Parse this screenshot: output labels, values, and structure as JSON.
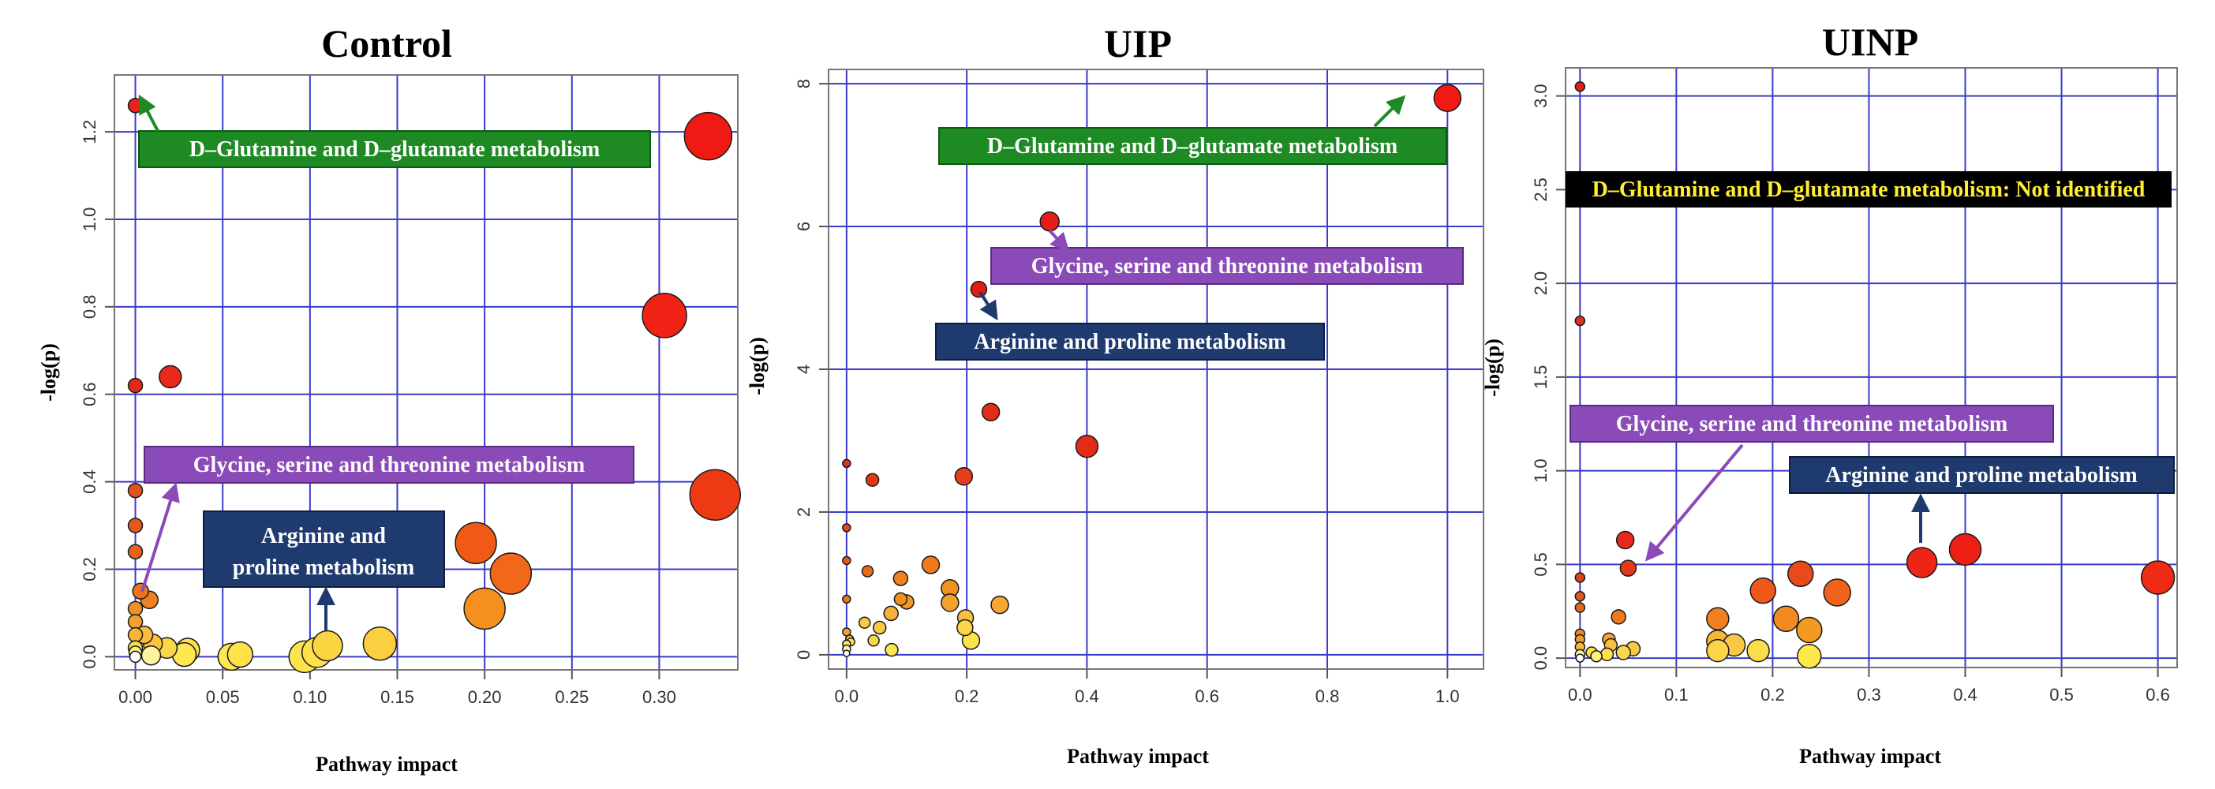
{
  "chart_data": [
    {
      "type": "scatter",
      "title": "Control",
      "xlabel": "Pathway impact",
      "ylabel": "-log(p)",
      "xlim": [
        -0.012,
        0.345
      ],
      "ylim": [
        -0.03,
        1.33
      ],
      "xticks": [
        0.0,
        0.05,
        0.1,
        0.15,
        0.2,
        0.25,
        0.3
      ],
      "xtick_labels": [
        "0.00",
        "0.05",
        "0.10",
        "0.15",
        "0.20",
        "0.25",
        "0.30"
      ],
      "yticks": [
        0.0,
        0.2,
        0.4,
        0.6,
        0.8,
        1.0,
        1.2
      ],
      "ytick_labels": [
        "0.0",
        "0.2",
        "0.4",
        "0.6",
        "0.8",
        "1.0",
        "1.2"
      ],
      "grid": true,
      "points": [
        {
          "x": 0.0,
          "y": 1.26,
          "size": 9,
          "color": "#e8231a"
        },
        {
          "x": 0.328,
          "y": 1.19,
          "size": 30,
          "color": "#f01a14"
        },
        {
          "x": 0.303,
          "y": 0.78,
          "size": 28,
          "color": "#f02216"
        },
        {
          "x": 0.02,
          "y": 0.64,
          "size": 14,
          "color": "#e8281a"
        },
        {
          "x": 0.0,
          "y": 0.62,
          "size": 9,
          "color": "#e02a18"
        },
        {
          "x": 0.332,
          "y": 0.37,
          "size": 32,
          "color": "#ee3a14"
        },
        {
          "x": 0.0,
          "y": 0.38,
          "size": 9,
          "color": "#e0531c"
        },
        {
          "x": 0.0,
          "y": 0.3,
          "size": 9,
          "color": "#e25a1c"
        },
        {
          "x": 0.195,
          "y": 0.26,
          "size": 26,
          "color": "#ef5a16"
        },
        {
          "x": 0.0,
          "y": 0.24,
          "size": 9,
          "color": "#e5621c"
        },
        {
          "x": 0.215,
          "y": 0.19,
          "size": 26,
          "color": "#f2681a"
        },
        {
          "x": 0.003,
          "y": 0.15,
          "size": 10,
          "color": "#ee741c"
        },
        {
          "x": 0.008,
          "y": 0.13,
          "size": 11,
          "color": "#f08020"
        },
        {
          "x": 0.2,
          "y": 0.11,
          "size": 26,
          "color": "#f5901e"
        },
        {
          "x": 0.0,
          "y": 0.11,
          "size": 9,
          "color": "#f0902a"
        },
        {
          "x": 0.0,
          "y": 0.08,
          "size": 9,
          "color": "#f2a030"
        },
        {
          "x": 0.0,
          "y": 0.05,
          "size": 9,
          "color": "#f5b43a"
        },
        {
          "x": 0.005,
          "y": 0.05,
          "size": 11,
          "color": "#f8bc3e"
        },
        {
          "x": 0.01,
          "y": 0.03,
          "size": 12,
          "color": "#fac43e"
        },
        {
          "x": 0.018,
          "y": 0.02,
          "size": 13,
          "color": "#fbd648"
        },
        {
          "x": 0.0,
          "y": 0.02,
          "size": 9,
          "color": "#f8e04c"
        },
        {
          "x": 0.0,
          "y": 0.01,
          "size": 8,
          "color": "#fff27a"
        },
        {
          "x": 0.03,
          "y": 0.015,
          "size": 15,
          "color": "#fde04a"
        },
        {
          "x": 0.028,
          "y": 0.005,
          "size": 15,
          "color": "#fde84f"
        },
        {
          "x": 0.055,
          "y": 0.0,
          "size": 17,
          "color": "#fde84e"
        },
        {
          "x": 0.06,
          "y": 0.005,
          "size": 16,
          "color": "#fde24a"
        },
        {
          "x": 0.097,
          "y": 0.0,
          "size": 20,
          "color": "#fde44f"
        },
        {
          "x": 0.104,
          "y": 0.01,
          "size": 19,
          "color": "#fde04a"
        },
        {
          "x": 0.11,
          "y": 0.025,
          "size": 19,
          "color": "#fbd442"
        },
        {
          "x": 0.14,
          "y": 0.03,
          "size": 21,
          "color": "#fbcf40"
        },
        {
          "x": 0.0,
          "y": 0.0,
          "size": 7,
          "color": "#ffffff"
        },
        {
          "x": 0.009,
          "y": 0.003,
          "size": 12,
          "color": "#fff3a0"
        }
      ],
      "annotations": [
        {
          "text": "D–Glutamine and D–glutamate metabolism",
          "box": "green"
        },
        {
          "text": "Glycine, serine and threonine metabolism",
          "box": "purple"
        },
        {
          "text": "Arginine and",
          "box": "navy"
        },
        {
          "text": "proline metabolism",
          "box": "navy"
        }
      ]
    },
    {
      "type": "scatter",
      "title": "UIP",
      "xlabel": "Pathway impact",
      "ylabel": "-log(p)",
      "xlim": [
        -0.03,
        1.06
      ],
      "ylim": [
        -0.2,
        8.2
      ],
      "xticks": [
        0.0,
        0.2,
        0.4,
        0.6,
        0.8,
        1.0
      ],
      "xtick_labels": [
        "0.0",
        "0.2",
        "0.4",
        "0.6",
        "0.8",
        "1.0"
      ],
      "yticks": [
        0,
        2,
        4,
        6,
        8
      ],
      "ytick_labels": [
        "0",
        "2",
        "4",
        "6",
        "8"
      ],
      "grid": true,
      "points": [
        {
          "x": 1.0,
          "y": 7.8,
          "size": 17,
          "color": "#f01a14"
        },
        {
          "x": 0.338,
          "y": 6.07,
          "size": 12,
          "color": "#e41e16"
        },
        {
          "x": 0.22,
          "y": 5.12,
          "size": 10,
          "color": "#e01e16"
        },
        {
          "x": 0.24,
          "y": 3.4,
          "size": 11,
          "color": "#e22c18"
        },
        {
          "x": 0.4,
          "y": 2.92,
          "size": 14,
          "color": "#e22c18"
        },
        {
          "x": 0.0,
          "y": 2.68,
          "size": 5,
          "color": "#d83418"
        },
        {
          "x": 0.043,
          "y": 2.45,
          "size": 8,
          "color": "#e03a18"
        },
        {
          "x": 0.195,
          "y": 2.5,
          "size": 11,
          "color": "#e43e1a"
        },
        {
          "x": 0.0,
          "y": 1.78,
          "size": 5,
          "color": "#dc4a1c"
        },
        {
          "x": 0.0,
          "y": 1.32,
          "size": 5,
          "color": "#e05a1c"
        },
        {
          "x": 0.14,
          "y": 1.26,
          "size": 11,
          "color": "#f07a1e"
        },
        {
          "x": 0.035,
          "y": 1.17,
          "size": 7,
          "color": "#e86a1c"
        },
        {
          "x": 0.09,
          "y": 1.07,
          "size": 9,
          "color": "#f08020"
        },
        {
          "x": 0.172,
          "y": 0.93,
          "size": 11,
          "color": "#f29020"
        },
        {
          "x": 0.09,
          "y": 0.78,
          "size": 8,
          "color": "#f0901e"
        },
        {
          "x": 0.0,
          "y": 0.78,
          "size": 5,
          "color": "#e87a1c"
        },
        {
          "x": 0.1,
          "y": 0.74,
          "size": 9,
          "color": "#f29a28"
        },
        {
          "x": 0.172,
          "y": 0.73,
          "size": 11,
          "color": "#f4a22c"
        },
        {
          "x": 0.255,
          "y": 0.7,
          "size": 11,
          "color": "#f6a832"
        },
        {
          "x": 0.074,
          "y": 0.58,
          "size": 9,
          "color": "#f5b03a"
        },
        {
          "x": 0.198,
          "y": 0.52,
          "size": 10,
          "color": "#f8c040"
        },
        {
          "x": 0.03,
          "y": 0.45,
          "size": 7,
          "color": "#f8c848"
        },
        {
          "x": 0.055,
          "y": 0.38,
          "size": 8,
          "color": "#f8ca46"
        },
        {
          "x": 0.197,
          "y": 0.38,
          "size": 10,
          "color": "#fbd448"
        },
        {
          "x": 0.0,
          "y": 0.32,
          "size": 5,
          "color": "#f5a030"
        },
        {
          "x": 0.005,
          "y": 0.22,
          "size": 5,
          "color": "#f8d050"
        },
        {
          "x": 0.007,
          "y": 0.18,
          "size": 5,
          "color": "#fce060"
        },
        {
          "x": 0.045,
          "y": 0.2,
          "size": 7,
          "color": "#fad64a"
        },
        {
          "x": 0.207,
          "y": 0.2,
          "size": 11,
          "color": "#fde24a"
        },
        {
          "x": 0.0,
          "y": 0.15,
          "size": 5,
          "color": "#fde66a"
        },
        {
          "x": 0.0,
          "y": 0.08,
          "size": 5,
          "color": "#fff8b0"
        },
        {
          "x": 0.075,
          "y": 0.07,
          "size": 8,
          "color": "#fde650"
        },
        {
          "x": 0.0,
          "y": 0.02,
          "size": 4,
          "color": "#ffffff"
        }
      ],
      "annotations": [
        {
          "text": "D–Glutamine and D–glutamate metabolism",
          "box": "green"
        },
        {
          "text": "Glycine, serine and threonine metabolism",
          "box": "purple"
        },
        {
          "text": "Arginine and proline metabolism",
          "box": "navy"
        }
      ]
    },
    {
      "type": "scatter",
      "title": "UINP",
      "xlabel": "Pathway impact",
      "ylabel": "-log(p)",
      "xlim": [
        -0.015,
        0.62
      ],
      "ylim": [
        -0.05,
        3.15
      ],
      "xticks": [
        0.0,
        0.1,
        0.2,
        0.3,
        0.4,
        0.5,
        0.6
      ],
      "xtick_labels": [
        "0.0",
        "0.1",
        "0.2",
        "0.3",
        "0.4",
        "0.5",
        "0.6"
      ],
      "yticks": [
        0.0,
        0.5,
        1.0,
        1.5,
        2.0,
        2.5,
        3.0
      ],
      "ytick_labels": [
        "0.0",
        "0.5",
        "1.0",
        "1.5",
        "2.0",
        "2.5",
        "3.0"
      ],
      "grid": true,
      "points": [
        {
          "x": 0.0,
          "y": 3.05,
          "size": 6,
          "color": "#e01e16"
        },
        {
          "x": 0.0,
          "y": 1.8,
          "size": 6,
          "color": "#d83418"
        },
        {
          "x": 0.047,
          "y": 0.63,
          "size": 11,
          "color": "#e8281a"
        },
        {
          "x": 0.4,
          "y": 0.58,
          "size": 20,
          "color": "#ee2016"
        },
        {
          "x": 0.355,
          "y": 0.51,
          "size": 19,
          "color": "#ee2416"
        },
        {
          "x": 0.05,
          "y": 0.48,
          "size": 10,
          "color": "#e23a18"
        },
        {
          "x": 0.229,
          "y": 0.45,
          "size": 16,
          "color": "#e84a1a"
        },
        {
          "x": 0.6,
          "y": 0.43,
          "size": 21,
          "color": "#ee2c16"
        },
        {
          "x": 0.0,
          "y": 0.43,
          "size": 6,
          "color": "#dc4418"
        },
        {
          "x": 0.19,
          "y": 0.36,
          "size": 16,
          "color": "#f0581a"
        },
        {
          "x": 0.267,
          "y": 0.35,
          "size": 17,
          "color": "#f0621c"
        },
        {
          "x": 0.0,
          "y": 0.33,
          "size": 6,
          "color": "#e0581c"
        },
        {
          "x": 0.0,
          "y": 0.27,
          "size": 6,
          "color": "#e26a1c"
        },
        {
          "x": 0.04,
          "y": 0.22,
          "size": 9,
          "color": "#ee781c"
        },
        {
          "x": 0.143,
          "y": 0.21,
          "size": 14,
          "color": "#f08020"
        },
        {
          "x": 0.214,
          "y": 0.21,
          "size": 16,
          "color": "#f28a20"
        },
        {
          "x": 0.238,
          "y": 0.15,
          "size": 16,
          "color": "#f29a24"
        },
        {
          "x": 0.0,
          "y": 0.13,
          "size": 6,
          "color": "#ee9020"
        },
        {
          "x": 0.0,
          "y": 0.1,
          "size": 6,
          "color": "#f09a28"
        },
        {
          "x": 0.03,
          "y": 0.1,
          "size": 8,
          "color": "#f5a830"
        },
        {
          "x": 0.143,
          "y": 0.09,
          "size": 14,
          "color": "#f5b83a"
        },
        {
          "x": 0.16,
          "y": 0.07,
          "size": 14,
          "color": "#f8c844"
        },
        {
          "x": 0.032,
          "y": 0.07,
          "size": 8,
          "color": "#f8c040"
        },
        {
          "x": 0.055,
          "y": 0.05,
          "size": 9,
          "color": "#f8c846"
        },
        {
          "x": 0.143,
          "y": 0.04,
          "size": 14,
          "color": "#fbd448"
        },
        {
          "x": 0.185,
          "y": 0.04,
          "size": 14,
          "color": "#fbdc4a"
        },
        {
          "x": 0.0,
          "y": 0.06,
          "size": 6,
          "color": "#f5b83a"
        },
        {
          "x": 0.045,
          "y": 0.03,
          "size": 9,
          "color": "#fad64a"
        },
        {
          "x": 0.028,
          "y": 0.02,
          "size": 8,
          "color": "#fde04a"
        },
        {
          "x": 0.238,
          "y": 0.01,
          "size": 15,
          "color": "#fde84e"
        },
        {
          "x": 0.012,
          "y": 0.03,
          "size": 7,
          "color": "#fde24a"
        },
        {
          "x": 0.017,
          "y": 0.01,
          "size": 7,
          "color": "#fff07a"
        },
        {
          "x": 0.0,
          "y": 0.02,
          "size": 6,
          "color": "#fff8b0"
        },
        {
          "x": 0.0,
          "y": 0.0,
          "size": 5,
          "color": "#ffffff"
        }
      ],
      "annotations": [
        {
          "text": "D–Glutamine and D–glutamate metabolism: Not identified",
          "box": "black"
        },
        {
          "text": "Glycine, serine and threonine metabolism",
          "box": "purple"
        },
        {
          "text": "Arginine and proline metabolism",
          "box": "navy"
        }
      ]
    }
  ],
  "colors": {
    "grid": "#3a3acc",
    "green_box": "#1e8a24",
    "purple_box": "#8a4ab8",
    "navy_box": "#1f3a6e",
    "black_box": "#000000",
    "yellow_text": "#ffee33"
  }
}
